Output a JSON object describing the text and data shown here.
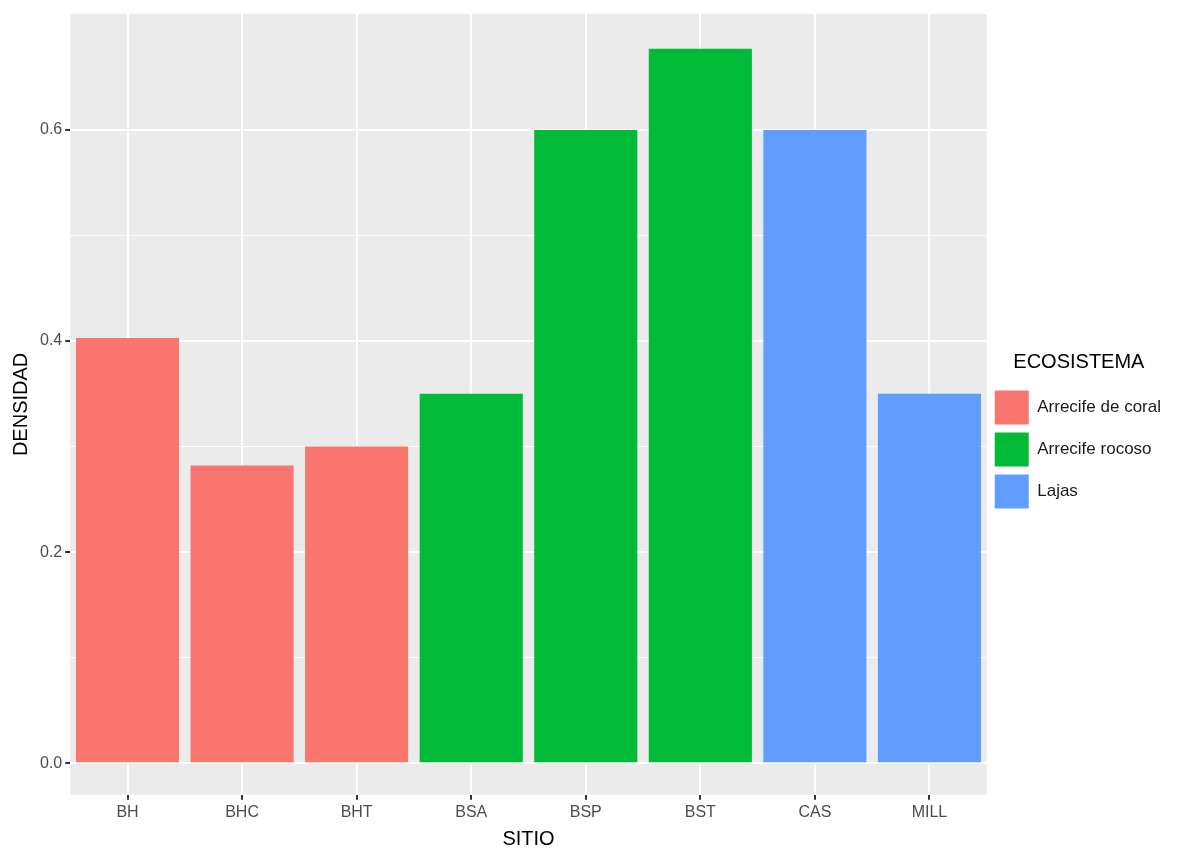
{
  "chart_data": {
    "type": "bar",
    "xlabel": "SITIO",
    "ylabel": "DENSIDAD",
    "legend_title": "ECOSISTEMA",
    "categories": [
      "BH",
      "BHC",
      "BHT",
      "BSA",
      "BSP",
      "BST",
      "CAS",
      "MILL"
    ],
    "stacked": true,
    "series": [
      {
        "name": "Arrecife de coral",
        "color": "#f8766d",
        "values": [
          0.403,
          0.282,
          0.3,
          null,
          null,
          null,
          null,
          null
        ]
      },
      {
        "name": "Arrecife rocoso",
        "color": "#00ba38",
        "values": [
          null,
          null,
          null,
          0.35,
          0.6,
          0.677,
          null,
          null
        ]
      },
      {
        "name": "Lajas",
        "color": "#619cff",
        "values": [
          null,
          null,
          null,
          null,
          null,
          null,
          0.6,
          0.35
        ]
      }
    ],
    "ylim": [
      -0.03,
      0.71
    ],
    "yticks": [
      {
        "value": 0,
        "label": "0.0"
      },
      {
        "value": 0.1,
        "label": null
      },
      {
        "value": 0.2,
        "label": "0.2"
      },
      {
        "value": 0.3,
        "label": null
      },
      {
        "value": 0.4,
        "label": "0.4"
      },
      {
        "value": 0.5,
        "label": null
      },
      {
        "value": 0.6,
        "label": "0.6"
      }
    ],
    "grid": true,
    "legend": "right"
  }
}
